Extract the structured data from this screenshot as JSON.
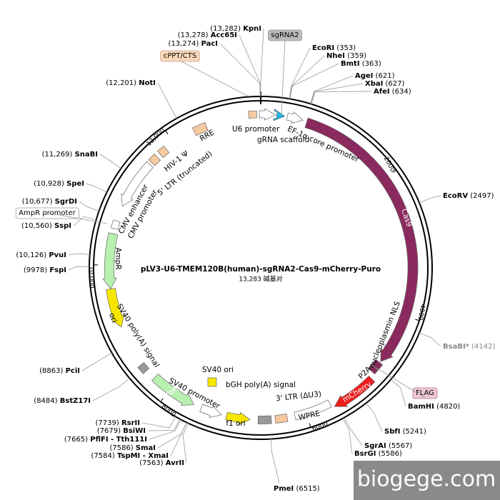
{
  "title": "pLV3-U6-TMEM120B(human)-sgRNA2-Cas9-mCherry-Puro",
  "size": "13,283 碱基对",
  "enzymes": [
    {
      "name": "KpnI",
      "position": "(13,282)"
    },
    {
      "name": "Acc65I",
      "position": "(13,278)"
    },
    {
      "name": "PacI",
      "position": "(13,274)"
    },
    {
      "name": "NotI",
      "position": "(12,201)"
    },
    {
      "name": "SnaBI",
      "position": "(11,269)"
    },
    {
      "name": "SpeI",
      "position": "(10,928)"
    },
    {
      "name": "SgrDI",
      "position": "(10,677)"
    },
    {
      "name": "SspI",
      "position": "(10,560)"
    },
    {
      "name": "PvuI",
      "position": "(10,126)"
    },
    {
      "name": "FspI",
      "position": "(9978)"
    },
    {
      "name": "PciI",
      "position": "(8863)"
    },
    {
      "name": "BstZ17I",
      "position": "(8484)"
    },
    {
      "name": "RsrII",
      "position": "(7739)"
    },
    {
      "name": "BsiWI",
      "position": "(7679)"
    },
    {
      "name": "PflFI - Tth111I",
      "position": "(7665)"
    },
    {
      "name": "SmaI",
      "position": "(7586)"
    },
    {
      "name": "TspMI - XmaI",
      "position": "(7584)"
    },
    {
      "name": "AvrII",
      "position": "(7563)"
    },
    {
      "name": "PmeI",
      "position": "(6515)"
    },
    {
      "name": "EcoRI",
      "position": "(353)"
    },
    {
      "name": "NheI",
      "position": "(359)"
    },
    {
      "name": "BmtI",
      "position": "(363)"
    },
    {
      "name": "AgeI",
      "position": "(621)"
    },
    {
      "name": "XbaI",
      "position": "(627)"
    },
    {
      "name": "AfeI",
      "position": "(634)"
    },
    {
      "name": "EcoRV",
      "position": "(2497)"
    },
    {
      "name": "BsaBI*",
      "position": "(4142)"
    },
    {
      "name": "BamHI",
      "position": "(4820)"
    },
    {
      "name": "SbfI",
      "position": "(5241)"
    },
    {
      "name": "SgrAI",
      "position": "(5567)"
    },
    {
      "name": "BsrGI",
      "position": "(5586)"
    }
  ],
  "boxed_labels": [
    "sgRNA2",
    "cPPT/CTS",
    "AmpR promoter",
    "FLAG"
  ],
  "features": [
    "U6 promoter",
    "gRNA scaffold",
    "EF-1α core promoter",
    "Cas9",
    "nucleoplasmin NLS",
    "P2A",
    "mCherry",
    "WPRE",
    "3' LTR (ΔU3)",
    "bGH poly(A) signal",
    "f1 ori",
    "SV40 ori",
    "SV40 promoter",
    "PuroR",
    "SV40 poly(A) signal",
    "ori",
    "AmpR",
    "CMV enhancer",
    "CMV promoter",
    "5' LTR (truncated)",
    "HIV-1 Ψ",
    "RRE"
  ],
  "scale_ticks": [
    "2000",
    "4000",
    "6000",
    "8000",
    "10,000",
    "12,000"
  ],
  "watermark": "biogege.com"
}
